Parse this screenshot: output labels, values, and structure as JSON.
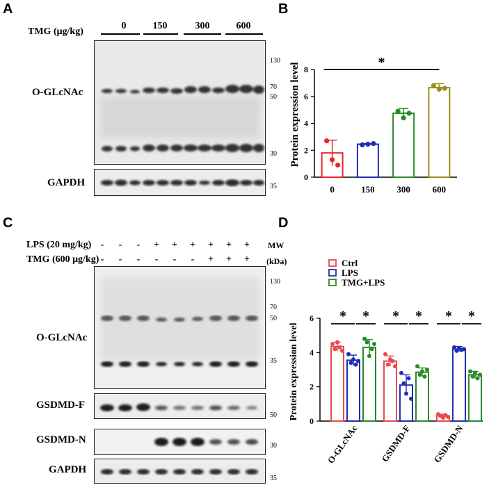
{
  "panels": {
    "a": "A",
    "b": "B",
    "c": "C",
    "d": "D"
  },
  "panel_a": {
    "treatment_label": "TMG (μg/kg)",
    "groups": [
      "0",
      "150",
      "300",
      "600"
    ],
    "rows": [
      "O-GLcNAc",
      "GAPDH"
    ],
    "markers": [
      "130",
      "70",
      "50",
      "30",
      "35"
    ]
  },
  "panel_c": {
    "lps_label": "LPS (20 mg/kg)",
    "tmg_label": "TMG (600 μg/kg)",
    "lps_signs": [
      "-",
      "-",
      "-",
      "+",
      "+",
      "+",
      "+",
      "+",
      "+"
    ],
    "tmg_signs": [
      "-",
      "-",
      "-",
      "-",
      "-",
      "-",
      "+",
      "+",
      "+"
    ],
    "mw_label": "MW",
    "kda_label": "(kDa)",
    "rows": [
      "O-GLcNAc",
      "GSDMD-F",
      "GSDMD-N",
      "GAPDH"
    ],
    "markers_ogl": [
      "130",
      "70",
      "50",
      "35"
    ],
    "marker_gf": "50",
    "marker_gn": "30",
    "marker_gapdh": "35"
  },
  "chart_data": [
    {
      "type": "bar",
      "panel": "B",
      "ylabel": "Protein  expression level",
      "categories": [
        "0",
        "150",
        "300",
        "600"
      ],
      "values": [
        1.8,
        2.45,
        4.75,
        6.65
      ],
      "errors": [
        0.95,
        0.05,
        0.35,
        0.3
      ],
      "points": [
        [
          2.7,
          1.3,
          0.9
        ],
        [
          2.4,
          2.45,
          2.5
        ],
        [
          4.9,
          4.4,
          4.75
        ],
        [
          6.8,
          6.55,
          6.6
        ]
      ],
      "colors": [
        "#e8262b",
        "#1f2fb5",
        "#2a8a2a",
        "#9a8f1c"
      ],
      "ylim": [
        0,
        8
      ],
      "yticks": [
        0,
        2,
        4,
        6,
        8
      ],
      "annotation": "*"
    },
    {
      "type": "bar",
      "panel": "D",
      "ylabel": "Protein expression level",
      "categories": [
        "O-GLcNAc",
        "GSDMD-F",
        "GSDMD-N"
      ],
      "series": [
        {
          "name": "Ctrl",
          "color": "#e84a4f",
          "values": [
            4.35,
            3.5,
            0.3
          ],
          "errors": [
            0.25,
            0.3,
            0.1
          ],
          "points": [
            [
              4.5,
              4.2,
              4.6,
              4.3,
              4.1
            ],
            [
              3.9,
              3.3,
              3.6,
              3.5,
              3.2
            ],
            [
              0.4,
              0.3,
              0.2,
              0.35,
              0.25
            ]
          ]
        },
        {
          "name": "LPS",
          "color": "#1f2fb5",
          "values": [
            3.55,
            2.1,
            4.2
          ],
          "errors": [
            0.3,
            0.6,
            0.15
          ],
          "points": [
            [
              3.9,
              3.4,
              3.6,
              3.3,
              3.5
            ],
            [
              2.8,
              2.2,
              1.6,
              2.5,
              1.3
            ],
            [
              4.3,
              4.1,
              4.25,
              4.15,
              4.2
            ]
          ]
        },
        {
          "name": "TMG+LPS",
          "color": "#2a8a2a",
          "values": [
            4.3,
            2.85,
            2.7
          ],
          "errors": [
            0.45,
            0.25,
            0.2
          ],
          "points": [
            [
              4.8,
              4.6,
              3.8,
              4.2,
              4.5
            ],
            [
              3.2,
              2.7,
              2.9,
              2.6,
              3.0
            ],
            [
              2.9,
              2.6,
              2.8,
              2.5,
              2.7
            ]
          ]
        }
      ],
      "ylim": [
        0,
        6
      ],
      "yticks": [
        0,
        2,
        4,
        6
      ],
      "annotation": "*"
    }
  ]
}
